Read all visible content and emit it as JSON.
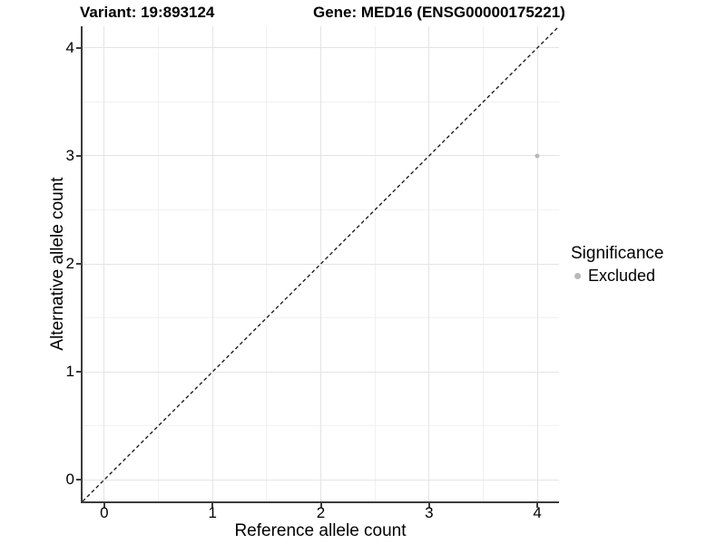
{
  "figure": {
    "title_left": "Variant: 19:893124",
    "title_right": "Gene: MED16 (ENSG00000175221)"
  },
  "chart_data": {
    "type": "scatter",
    "titles": [
      "Variant: 19:893124",
      "Gene: MED16 (ENSG00000175221)"
    ],
    "xlabel": "Reference allele count",
    "ylabel": "Alternative allele count",
    "xlim": [
      -0.2,
      4.2
    ],
    "ylim": [
      -0.2,
      4.2
    ],
    "x_ticks": [
      0,
      1,
      2,
      3,
      4
    ],
    "y_ticks": [
      0,
      1,
      2,
      3,
      4
    ],
    "x_minor_ticks": [
      0.5,
      1.5,
      2.5,
      3.5
    ],
    "y_minor_ticks": [
      0.5,
      1.5,
      2.5,
      3.5
    ],
    "grid": "major+minor",
    "series": [
      {
        "name": "Excluded",
        "color": "#b9b9b9",
        "point_size": 5,
        "points": [
          {
            "x": 4,
            "y": 3
          }
        ]
      }
    ],
    "reference_line": {
      "style": "dashed",
      "slope": 1,
      "intercept": 0,
      "color": "#111111"
    },
    "legend": {
      "title": "Significance",
      "position": "right",
      "entries": [
        {
          "label": "Excluded",
          "color": "#b9b9b9"
        }
      ]
    }
  },
  "colors": {
    "background": "#ffffff",
    "grid_major": "#e4e4e4",
    "grid_minor": "#f1f1f1",
    "axis": "#3c3c3c",
    "text": "#000000"
  }
}
